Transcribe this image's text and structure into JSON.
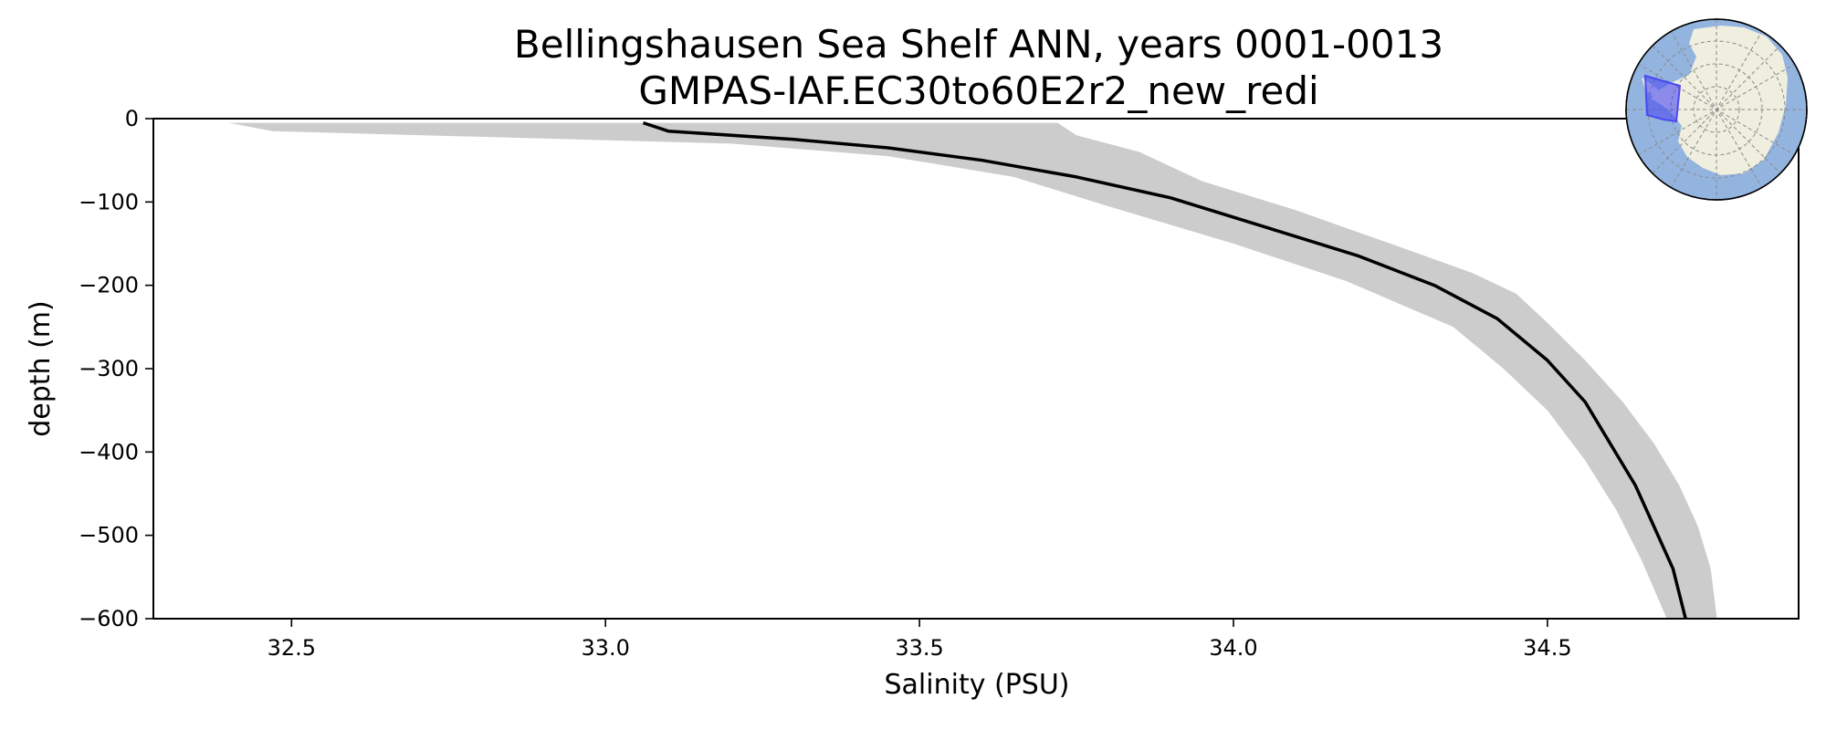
{
  "chart_data": {
    "type": "line",
    "title": "Bellingshausen Sea Shelf ANN, years 0001-0013",
    "subtitle": "GMPAS-IAF.EC30to60E2r2_new_redi",
    "xlabel": "Salinity (PSU)",
    "ylabel": "depth (m)",
    "xlim": [
      32.28,
      34.9
    ],
    "ylim": [
      -600,
      0
    ],
    "x_ticks": [
      32.5,
      33.0,
      33.5,
      34.0,
      34.5
    ],
    "x_tick_labels": [
      "32.5",
      "33.0",
      "33.5",
      "34.0",
      "34.5"
    ],
    "y_ticks": [
      0,
      -100,
      -200,
      -300,
      -400,
      -500,
      -600
    ],
    "y_tick_labels": [
      "0",
      "−100",
      "−200",
      "−300",
      "−400",
      "−500",
      "−600"
    ],
    "grid": false,
    "legend": "none",
    "series": [
      {
        "role": "mean",
        "color": "#000000",
        "points": [
          [
            33.06,
            -5
          ],
          [
            33.1,
            -15
          ],
          [
            33.3,
            -25
          ],
          [
            33.45,
            -35
          ],
          [
            33.6,
            -50
          ],
          [
            33.75,
            -70
          ],
          [
            33.9,
            -95
          ],
          [
            34.05,
            -130
          ],
          [
            34.2,
            -165
          ],
          [
            34.32,
            -200
          ],
          [
            34.42,
            -240
          ],
          [
            34.5,
            -290
          ],
          [
            34.56,
            -340
          ],
          [
            34.6,
            -390
          ],
          [
            34.64,
            -440
          ],
          [
            34.67,
            -490
          ],
          [
            34.7,
            -540
          ],
          [
            34.72,
            -600
          ]
        ]
      }
    ],
    "band": {
      "role": "spread",
      "color": "#cccccc",
      "upper": [
        [
          33.72,
          -5
        ],
        [
          33.75,
          -20
        ],
        [
          33.85,
          -40
        ],
        [
          33.95,
          -75
        ],
        [
          34.1,
          -110
        ],
        [
          34.25,
          -150
        ],
        [
          34.38,
          -185
        ],
        [
          34.45,
          -210
        ],
        [
          34.5,
          -245
        ],
        [
          34.56,
          -290
        ],
        [
          34.62,
          -340
        ],
        [
          34.67,
          -390
        ],
        [
          34.71,
          -440
        ],
        [
          34.74,
          -490
        ],
        [
          34.76,
          -540
        ],
        [
          34.77,
          -600
        ]
      ],
      "lower": [
        [
          32.4,
          -5
        ],
        [
          32.47,
          -15
        ],
        [
          33.2,
          -30
        ],
        [
          33.45,
          -45
        ],
        [
          33.65,
          -70
        ],
        [
          33.8,
          -105
        ],
        [
          34.0,
          -150
        ],
        [
          34.18,
          -195
        ],
        [
          34.35,
          -250
        ],
        [
          34.43,
          -300
        ],
        [
          34.5,
          -350
        ],
        [
          34.56,
          -410
        ],
        [
          34.61,
          -470
        ],
        [
          34.65,
          -530
        ],
        [
          34.69,
          -600
        ]
      ]
    },
    "inset_map": {
      "ocean_color": "#94b4e0",
      "land_color": "#efeedf",
      "region_color": "#4a4af0"
    }
  }
}
